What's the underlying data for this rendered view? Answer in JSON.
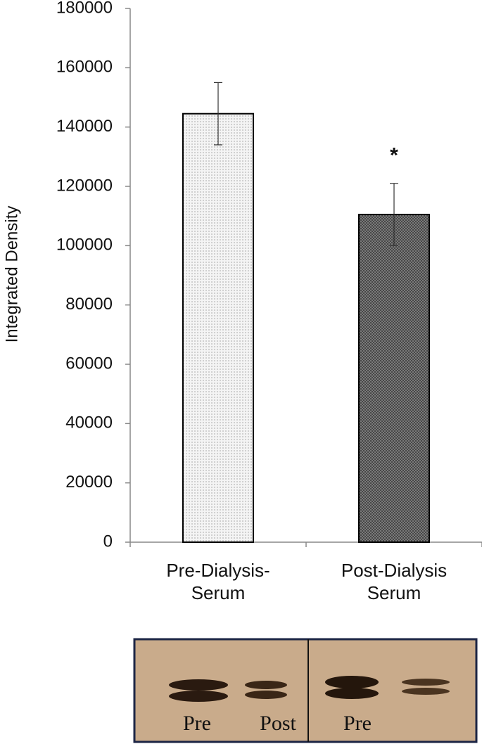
{
  "chart_data": {
    "type": "bar",
    "y_label": "Integrated Density",
    "categories": [
      "Pre-Dialysis-\nSerum",
      "Post-Dialysis\nSerum"
    ],
    "values": [
      144500,
      110500
    ],
    "errors": [
      10500,
      10500
    ],
    "colors": [
      "#f4f4f4",
      "#7a7a7a"
    ],
    "annotation": "*",
    "ylim": [
      0,
      180000
    ],
    "yticks": [
      0,
      20000,
      40000,
      60000,
      80000,
      100000,
      120000,
      140000,
      160000,
      180000
    ],
    "grid": false
  },
  "blot_labels": [
    "Pre",
    "Post",
    "Pre"
  ]
}
